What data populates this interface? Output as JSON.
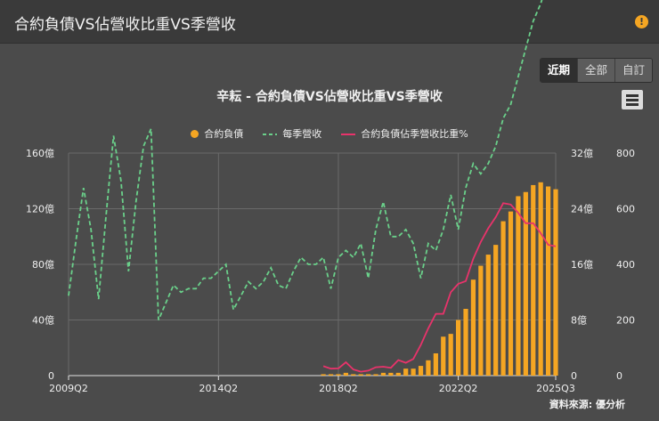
{
  "header": {
    "title": "合約負債VS佔營收比重VS季營收"
  },
  "range_buttons": [
    "近期",
    "全部",
    "自訂"
  ],
  "source": "資料來源: 優分析",
  "chart_data": {
    "type": "bar+line",
    "title": "辛耘 - 合約負債VS佔營收比重VS季營收",
    "legend": [
      "合約負債",
      "每季營收",
      "合約負債佔季營收比重%"
    ],
    "colors": {
      "bar": "#f5a623",
      "revenue": "#6ad08a",
      "ratio": "#e8336b"
    },
    "x_ticks": [
      "2009Q2",
      "2014Q2",
      "2018Q2",
      "2022Q2",
      "2025Q3"
    ],
    "y_left_ticks": [
      "0",
      "40億",
      "80億",
      "120億",
      "160億"
    ],
    "y_mid_ticks": [
      "0",
      "8億",
      "16億",
      "24億",
      "32億"
    ],
    "y_right_ticks": [
      "0",
      "200",
      "400",
      "600",
      "800"
    ],
    "y_left_range": [
      0,
      160
    ],
    "y_mid_range": [
      0,
      32
    ],
    "y_right_range": [
      0,
      800
    ],
    "quarter_start": "2009Q2",
    "quarters": 66,
    "contract_liabilities": [
      {
        "q": "2017Q4",
        "v": 1
      },
      {
        "q": "2018Q1",
        "v": 1
      },
      {
        "q": "2018Q2",
        "v": 1
      },
      {
        "q": "2018Q3",
        "v": 2
      },
      {
        "q": "2018Q4",
        "v": 1
      },
      {
        "q": "2019Q1",
        "v": 1
      },
      {
        "q": "2019Q2",
        "v": 1
      },
      {
        "q": "2019Q3",
        "v": 1
      },
      {
        "q": "2019Q4",
        "v": 2
      },
      {
        "q": "2020Q1",
        "v": 2
      },
      {
        "q": "2020Q2",
        "v": 2
      },
      {
        "q": "2020Q3",
        "v": 5
      },
      {
        "q": "2020Q4",
        "v": 5
      },
      {
        "q": "2021Q1",
        "v": 7
      },
      {
        "q": "2021Q2",
        "v": 11
      },
      {
        "q": "2021Q3",
        "v": 16
      },
      {
        "q": "2021Q4",
        "v": 28
      },
      {
        "q": "2022Q1",
        "v": 30
      },
      {
        "q": "2022Q2",
        "v": 40
      },
      {
        "q": "2022Q3",
        "v": 48
      },
      {
        "q": "2022Q4",
        "v": 69
      },
      {
        "q": "2023Q1",
        "v": 79
      },
      {
        "q": "2023Q2",
        "v": 87
      },
      {
        "q": "2023Q3",
        "v": 94
      },
      {
        "q": "2023Q4",
        "v": 111
      },
      {
        "q": "2024Q1",
        "v": 118
      },
      {
        "q": "2024Q2",
        "v": 129
      },
      {
        "q": "2024Q3",
        "v": 132
      },
      {
        "q": "2024Q4",
        "v": 137
      },
      {
        "q": "2025Q1",
        "v": 139
      },
      {
        "q": "2025Q2",
        "v": 136
      },
      {
        "q": "2025Q3",
        "v": 134
      }
    ],
    "quarterly_revenue": [
      11.5,
      19.5,
      27,
      21,
      11,
      23,
      34.5,
      28,
      15,
      25,
      33,
      35.5,
      8,
      10.5,
      13,
      12,
      12.5,
      12.5,
      14,
      14,
      15,
      16,
      9.5,
      11.5,
      13.5,
      12.5,
      13.5,
      15.5,
      13,
      12.5,
      15,
      17,
      16,
      16,
      17,
      12.5,
      17,
      18,
      17,
      19,
      14,
      21,
      25,
      20,
      20,
      21,
      19,
      14,
      19,
      18,
      21,
      26,
      21,
      27,
      30.5,
      29,
      30.5,
      33,
      37,
      39,
      43,
      47,
      51,
      53.5,
      57,
      69
    ],
    "contract_ratio_pct": [
      {
        "q": "2017Q4",
        "v": 34
      },
      {
        "q": "2018Q1",
        "v": 25
      },
      {
        "q": "2018Q2",
        "v": 26
      },
      {
        "q": "2018Q3",
        "v": 48
      },
      {
        "q": "2018Q4",
        "v": 22
      },
      {
        "q": "2019Q1",
        "v": 14
      },
      {
        "q": "2019Q2",
        "v": 18
      },
      {
        "q": "2019Q3",
        "v": 30
      },
      {
        "q": "2019Q4",
        "v": 32
      },
      {
        "q": "2020Q1",
        "v": 28
      },
      {
        "q": "2020Q2",
        "v": 56
      },
      {
        "q": "2020Q3",
        "v": 46
      },
      {
        "q": "2020Q4",
        "v": 60
      },
      {
        "q": "2021Q1",
        "v": 110
      },
      {
        "q": "2021Q2",
        "v": 170
      },
      {
        "q": "2021Q3",
        "v": 222
      },
      {
        "q": "2021Q4",
        "v": 222
      },
      {
        "q": "2022Q1",
        "v": 300
      },
      {
        "q": "2022Q2",
        "v": 330
      },
      {
        "q": "2022Q3",
        "v": 340
      },
      {
        "q": "2022Q4",
        "v": 420
      },
      {
        "q": "2023Q1",
        "v": 480
      },
      {
        "q": "2023Q2",
        "v": 530
      },
      {
        "q": "2023Q3",
        "v": 570
      },
      {
        "q": "2023Q4",
        "v": 620
      },
      {
        "q": "2024Q1",
        "v": 615
      },
      {
        "q": "2024Q2",
        "v": 585
      },
      {
        "q": "2024Q3",
        "v": 548
      },
      {
        "q": "2024Q4",
        "v": 548
      },
      {
        "q": "2025Q1",
        "v": 512
      },
      {
        "q": "2025Q2",
        "v": 470
      },
      {
        "q": "2025Q3",
        "v": 465
      }
    ]
  }
}
